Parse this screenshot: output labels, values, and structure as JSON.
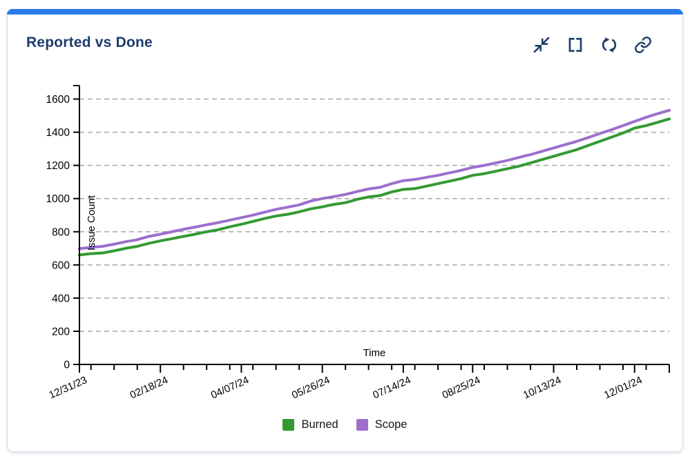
{
  "card": {
    "title": "Reported vs Done",
    "accent_color": "#2b7ce9",
    "icon_color": "#20406b"
  },
  "toolbar": {
    "icons": [
      "compress-icon",
      "fullscreen-icon",
      "refresh-icon",
      "link-icon"
    ]
  },
  "chart_data": {
    "type": "line",
    "title": "Reported vs Done",
    "xlabel": "Time",
    "ylabel": "Issue Count",
    "ylim": [
      0,
      1700
    ],
    "yticks": [
      0,
      200,
      400,
      600,
      800,
      1000,
      1200,
      1400,
      1600
    ],
    "grid": "horizontal-dashed",
    "gridline_color": "#a6a6a6",
    "axis_color": "#000000",
    "legend_position": "bottom",
    "x_domain_days": [
      0,
      357
    ],
    "x_major_ticks": [
      {
        "label": "12/31/23",
        "day": 0
      },
      {
        "label": "02/18/24",
        "day": 49
      },
      {
        "label": "04/07/24",
        "day": 98
      },
      {
        "label": "05/26/24",
        "day": 147
      },
      {
        "label": "07/14/24",
        "day": 196
      },
      {
        "label": "08/25/24",
        "day": 238
      },
      {
        "label": "10/13/24",
        "day": 287
      },
      {
        "label": "12/01/24",
        "day": 336
      }
    ],
    "x_days": [
      0,
      7,
      14,
      21,
      28,
      35,
      42,
      49,
      56,
      63,
      70,
      77,
      84,
      91,
      98,
      105,
      112,
      119,
      126,
      133,
      140,
      147,
      154,
      161,
      168,
      175,
      182,
      189,
      196,
      203,
      210,
      217,
      224,
      231,
      238,
      245,
      252,
      259,
      266,
      273,
      280,
      287,
      294,
      301,
      308,
      315,
      322,
      329,
      336,
      343,
      350,
      357
    ],
    "series": [
      {
        "name": "Burned",
        "color": "#339a33",
        "values": [
          660,
          668,
          672,
          685,
          700,
          712,
          730,
          745,
          758,
          772,
          785,
          800,
          812,
          830,
          845,
          862,
          880,
          895,
          905,
          920,
          938,
          950,
          965,
          975,
          995,
          1010,
          1018,
          1040,
          1055,
          1060,
          1075,
          1090,
          1105,
          1120,
          1140,
          1150,
          1165,
          1180,
          1195,
          1215,
          1235,
          1255,
          1275,
          1295,
          1320,
          1345,
          1370,
          1395,
          1425,
          1440,
          1460,
          1480
        ]
      },
      {
        "name": "Scope",
        "color": "#9c6fcd",
        "values": [
          698,
          706,
          712,
          725,
          740,
          752,
          772,
          785,
          800,
          815,
          828,
          842,
          855,
          870,
          885,
          900,
          918,
          935,
          948,
          962,
          985,
          1000,
          1012,
          1025,
          1042,
          1058,
          1068,
          1090,
          1108,
          1115,
          1128,
          1140,
          1155,
          1170,
          1188,
          1200,
          1215,
          1230,
          1248,
          1265,
          1285,
          1305,
          1325,
          1345,
          1368,
          1392,
          1415,
          1440,
          1465,
          1490,
          1512,
          1532
        ]
      }
    ]
  }
}
